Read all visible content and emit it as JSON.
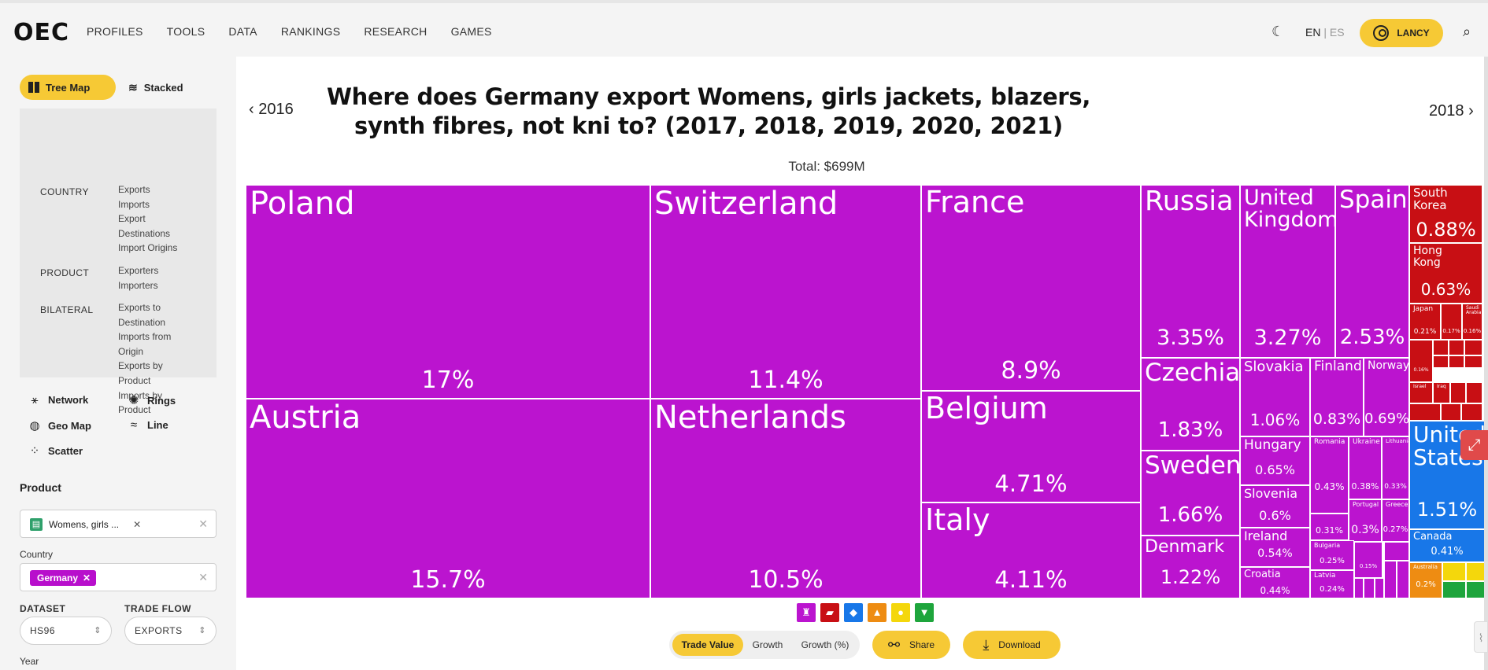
{
  "header": {
    "logo": "OEC",
    "nav": [
      "PROFILES",
      "TOOLS",
      "DATA",
      "RANKINGS",
      "RESEARCH",
      "GAMES"
    ],
    "lang_en": "EN",
    "lang_sep": "|",
    "lang_es": "ES",
    "user_label": "LANCY",
    "moon_icon": "☾",
    "search_icon": "⌕"
  },
  "sidebar": {
    "viz_active": "Tree Map",
    "viz_stacked": "Stacked",
    "menu": {
      "country_label": "COUNTRY",
      "country_links": "Exports\nImports\nExport\nDestinations\nImport Origins",
      "product_label": "PRODUCT",
      "product_links": "Exporters\nImporters",
      "bilateral_label": "BILATERAL",
      "bilateral_links": "Exports to\nDestination\nImports from\nOrigin\nExports by\nProduct\nImports by\nProduct"
    },
    "viz_options": {
      "network": "Network",
      "rings": "Rings",
      "geomap": "Geo Map",
      "line": "Line",
      "scatter": "Scatter"
    },
    "product_section": "Product",
    "product_value": "Womens, girls ...",
    "country_label": "Country",
    "country_value": "Germany",
    "dataset_label": "DATASET",
    "dataset_value": "HS96",
    "tradeflow_label": "TRADE FLOW",
    "tradeflow_value": "EXPORTS",
    "year_label": "Year"
  },
  "main": {
    "prev_year": "2016",
    "next_year": "2018",
    "title": "Where does Germany export Womens, girls jackets, blazers, synth fibres, not kni to? (2017, 2018, 2019, 2020, 2021)",
    "total": "Total: $699M",
    "toggle": {
      "trade_value": "Trade Value",
      "growth": "Growth",
      "growth_pct": "Growth (%)"
    },
    "share": "Share",
    "download": "Download"
  },
  "colors": {
    "europe": "#bb14cf",
    "asia": "#c80f14",
    "north_america": "#1877e8",
    "oceania": "#ee8c12",
    "africa": "#f4d70c",
    "south_america": "#1ea53c",
    "accent": "#f6c935"
  },
  "treemap_tiles": [
    {
      "name": "Poland",
      "share": "17%"
    },
    {
      "name": "Austria",
      "share": "15.7%"
    },
    {
      "name": "Switzerland",
      "share": "11.4%"
    },
    {
      "name": "Netherlands",
      "share": "10.5%"
    },
    {
      "name": "France",
      "share": "8.9%"
    },
    {
      "name": "Belgium",
      "share": "4.71%"
    },
    {
      "name": "Italy",
      "share": "4.11%"
    },
    {
      "name": "Russia",
      "share": "3.35%"
    },
    {
      "name": "United\nKingdom",
      "share": "3.27%"
    },
    {
      "name": "Spain",
      "share": "2.53%"
    },
    {
      "name": "Czechia",
      "share": "1.83%"
    },
    {
      "name": "Sweden",
      "share": "1.66%"
    },
    {
      "name": "Denmark",
      "share": "1.22%"
    },
    {
      "name": "Slovakia",
      "share": "1.06%"
    },
    {
      "name": "Finland",
      "share": "0.83%"
    },
    {
      "name": "Norway",
      "share": "0.69%"
    },
    {
      "name": "Hungary",
      "share": "0.65%"
    },
    {
      "name": "Slovenia",
      "share": "0.6%"
    },
    {
      "name": "Ireland",
      "share": "0.54%"
    },
    {
      "name": "Croatia",
      "share": "0.44%"
    },
    {
      "name": "Romania",
      "share": "0.43%"
    },
    {
      "name": "Ukraine",
      "share": "0.38%"
    },
    {
      "name": "Lithuania",
      "share": "0.33%"
    },
    {
      "name": "Portugal",
      "share": "0.3%"
    },
    {
      "name": "Greece",
      "share": "0.27%"
    },
    {
      "name": "",
      "share": "0.31%"
    },
    {
      "name": "Bulgaria",
      "share": "0.25%"
    },
    {
      "name": "Latvia",
      "share": "0.24%"
    },
    {
      "name": "",
      "share": "0.15%"
    },
    {
      "name": "South Korea",
      "share": "0.88%"
    },
    {
      "name": "Hong\nKong",
      "share": "0.63%"
    },
    {
      "name": "Japan",
      "share": "0.21%"
    },
    {
      "name": "",
      "share": "0.17%"
    },
    {
      "name": "Saudi\nArabia",
      "share": "0.16%"
    },
    {
      "name": "",
      "share": "0.16%"
    },
    {
      "name": "Israel",
      "share": ""
    },
    {
      "name": "Iraq",
      "share": ""
    },
    {
      "name": "United\nStates",
      "share": "1.51%"
    },
    {
      "name": "Canada",
      "share": "0.41%"
    },
    {
      "name": "Australia",
      "share": "0.2%"
    }
  ]
}
